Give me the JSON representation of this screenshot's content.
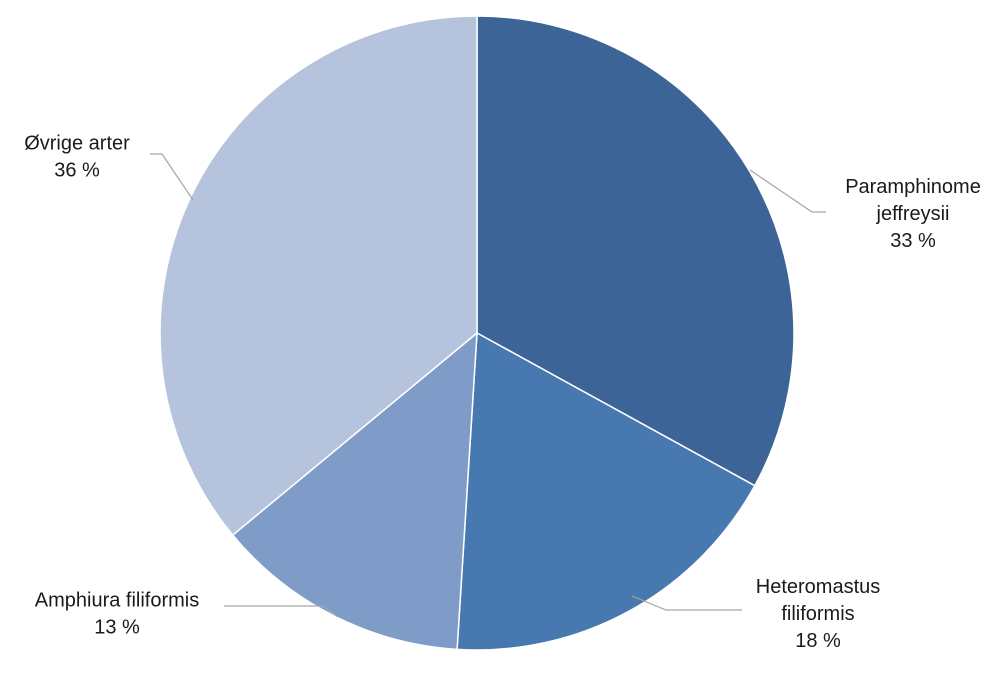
{
  "chart_data": {
    "type": "pie",
    "title": "",
    "start_angle_deg": 0,
    "direction": "clockwise",
    "slices": [
      {
        "name": "Paramphinome jeffreysii",
        "label_lines": [
          "Paramphinome",
          "jeffreysii"
        ],
        "value": 33,
        "value_label": "33 %",
        "color": "#3D6496"
      },
      {
        "name": "Heteromastus filiformis",
        "label_lines": [
          "Heteromastus",
          "filiformis"
        ],
        "value": 18,
        "value_label": "18 %",
        "color": "#4878B0"
      },
      {
        "name": "Amphiura filiformis",
        "label_lines": [
          "Amphiura filiformis"
        ],
        "value": 13,
        "value_label": "13 %",
        "color": "#7F9CC8"
      },
      {
        "name": "Øvrige arter",
        "label_lines": [
          "Øvrige arter"
        ],
        "value": 36,
        "value_label": "36 %",
        "color": "#B5C3DD"
      }
    ]
  }
}
